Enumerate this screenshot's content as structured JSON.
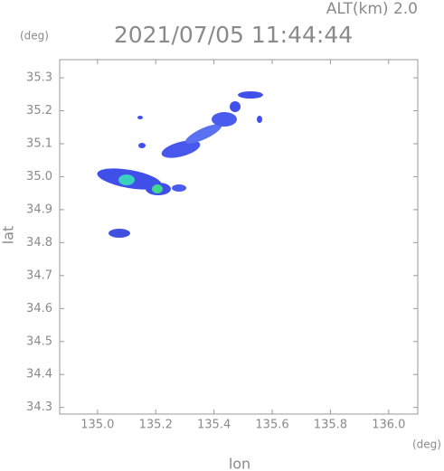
{
  "chart_data": {
    "type": "map",
    "title": "2021/07/05 11:44:44",
    "annotation": "ALT(km) 2.0",
    "y_unit": "(deg)",
    "x_unit": "(deg)",
    "xlabel": "lon",
    "ylabel": "lat",
    "xlim": [
      134.87,
      136.1
    ],
    "ylim": [
      34.28,
      35.355
    ],
    "xticks": [
      {
        "value": 135.0,
        "label": "135.0"
      },
      {
        "value": 135.2,
        "label": "135.2"
      },
      {
        "value": 135.4,
        "label": "135.4"
      },
      {
        "value": 135.6,
        "label": "135.6"
      },
      {
        "value": 135.8,
        "label": "135.8"
      },
      {
        "value": 136.0,
        "label": "136.0"
      }
    ],
    "yticks": [
      {
        "value": 34.3,
        "label": "34.3"
      },
      {
        "value": 34.4,
        "label": "34.4"
      },
      {
        "value": 34.5,
        "label": "34.5"
      },
      {
        "value": 34.6,
        "label": "34.6"
      },
      {
        "value": 34.7,
        "label": "34.7"
      },
      {
        "value": 34.8,
        "label": "34.8"
      },
      {
        "value": 34.9,
        "label": "34.9"
      },
      {
        "value": 35.0,
        "label": "35.0"
      },
      {
        "value": 35.1,
        "label": "35.1"
      },
      {
        "value": 35.2,
        "label": "35.2"
      },
      {
        "value": 35.3,
        "label": "35.3"
      }
    ]
  }
}
